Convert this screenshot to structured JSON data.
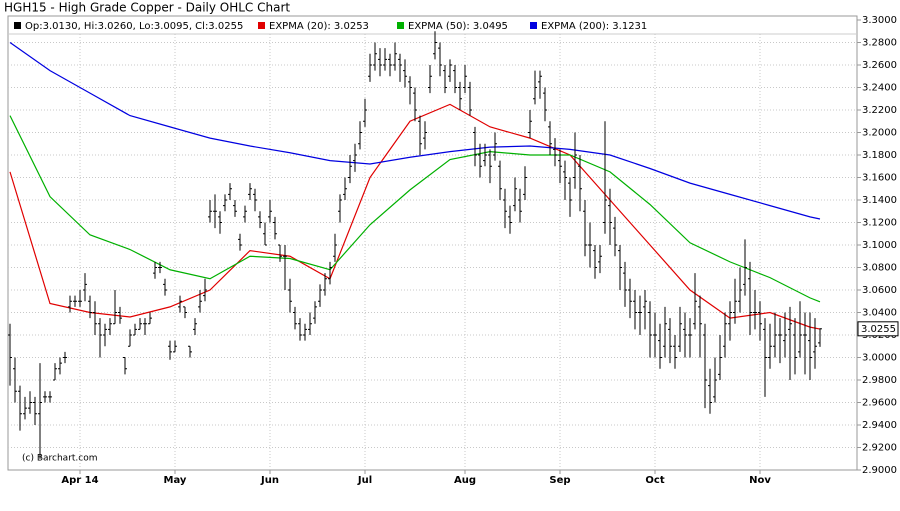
{
  "chart_data": {
    "type": "ohlc",
    "title": "HGH15 - High Grade Copper - Daily OHLC Chart",
    "ohlc_label": "Op:3.0130, Hi:3.0260, Lo:3.0095, Cl:3.0255",
    "last_price_label": "3.0255",
    "watermark": "(c) Barchart.com",
    "bar_color": "#000000",
    "ylim": [
      2.9,
      3.3
    ],
    "yticks": [
      {
        "value": 2.9,
        "label": "2.9000"
      },
      {
        "value": 2.92,
        "label": "2.9200"
      },
      {
        "value": 2.94,
        "label": "2.9400"
      },
      {
        "value": 2.96,
        "label": "2.9600"
      },
      {
        "value": 2.98,
        "label": "2.9800"
      },
      {
        "value": 3.0,
        "label": "3.0000"
      },
      {
        "value": 3.02,
        "label": "3.0200"
      },
      {
        "value": 3.04,
        "label": "3.0400"
      },
      {
        "value": 3.06,
        "label": "3.0600"
      },
      {
        "value": 3.08,
        "label": "3.0800"
      },
      {
        "value": 3.1,
        "label": "3.1000"
      },
      {
        "value": 3.12,
        "label": "3.1200"
      },
      {
        "value": 3.14,
        "label": "3.1400"
      },
      {
        "value": 3.16,
        "label": "3.1600"
      },
      {
        "value": 3.18,
        "label": "3.1800"
      },
      {
        "value": 3.2,
        "label": "3.2000"
      },
      {
        "value": 3.22,
        "label": "3.2200"
      },
      {
        "value": 3.24,
        "label": "3.2400"
      },
      {
        "value": 3.26,
        "label": "3.2600"
      },
      {
        "value": 3.28,
        "label": "3.2800"
      },
      {
        "value": 3.3,
        "label": "3.3000"
      }
    ],
    "xlim": [
      0,
      162
    ],
    "xticks": [
      {
        "value": 14,
        "label": "Apr 14"
      },
      {
        "value": 33,
        "label": "May"
      },
      {
        "value": 52,
        "label": "Jun"
      },
      {
        "value": 71,
        "label": "Jul"
      },
      {
        "value": 91,
        "label": "Aug"
      },
      {
        "value": 110,
        "label": "Sep"
      },
      {
        "value": 129,
        "label": "Oct"
      },
      {
        "value": 150,
        "label": "Nov"
      }
    ],
    "grid": true,
    "bars": [
      [
        3.02,
        3.03,
        2.975,
        3.0
      ],
      [
        2.99,
        3.0,
        2.96,
        2.97
      ],
      [
        2.97,
        2.975,
        2.935,
        2.95
      ],
      [
        2.95,
        2.965,
        2.945,
        2.955
      ],
      [
        2.955,
        2.97,
        2.95,
        2.96
      ],
      [
        2.96,
        2.965,
        2.94,
        2.95
      ],
      [
        2.95,
        2.995,
        2.91,
        2.96
      ],
      [
        2.965,
        2.97,
        2.96,
        2.965
      ],
      [
        2.965,
        2.97,
        2.96,
        2.965
      ],
      [
        2.98,
        2.995,
        2.98,
        2.99
      ],
      [
        2.99,
        3.0,
        2.985,
        2.995
      ],
      [
        3.0,
        3.005,
        2.995,
        3.0
      ],
      [
        3.045,
        3.055,
        3.04,
        3.05
      ],
      [
        3.05,
        3.055,
        3.045,
        3.05
      ],
      [
        3.05,
        3.06,
        3.045,
        3.05
      ],
      [
        3.06,
        3.075,
        3.05,
        3.065
      ],
      [
        3.05,
        3.055,
        3.035,
        3.04
      ],
      [
        3.04,
        3.05,
        3.02,
        3.03
      ],
      [
        3.03,
        3.035,
        3.0,
        3.02
      ],
      [
        3.02,
        3.03,
        3.01,
        3.025
      ],
      [
        3.025,
        3.035,
        3.02,
        3.03
      ],
      [
        3.03,
        3.06,
        3.03,
        3.04
      ],
      [
        3.04,
        3.045,
        3.03,
        3.035
      ],
      [
        3.0,
        3.0,
        2.985,
        2.99
      ],
      [
        3.01,
        3.025,
        3.01,
        3.02
      ],
      [
        3.02,
        3.03,
        3.02,
        3.025
      ],
      [
        3.025,
        3.035,
        3.025,
        3.03
      ],
      [
        3.03,
        3.035,
        3.02,
        3.03
      ],
      [
        3.03,
        3.04,
        3.03,
        3.035
      ],
      [
        3.075,
        3.085,
        3.07,
        3.08
      ],
      [
        3.08,
        3.085,
        3.075,
        3.08
      ],
      [
        3.065,
        3.07,
        3.055,
        3.06
      ],
      [
        3.01,
        3.015,
        2.998,
        3.005
      ],
      [
        3.005,
        3.015,
        3.005,
        3.01
      ],
      [
        3.045,
        3.055,
        3.04,
        3.05
      ],
      [
        3.045,
        3.045,
        3.035,
        3.04
      ],
      [
        3.01,
        3.01,
        3.0,
        3.005
      ],
      [
        3.025,
        3.035,
        3.02,
        3.03
      ],
      [
        3.045,
        3.06,
        3.04,
        3.05
      ],
      [
        3.055,
        3.07,
        3.05,
        3.06
      ],
      [
        3.125,
        3.14,
        3.12,
        3.13
      ],
      [
        3.13,
        3.145,
        3.115,
        3.13
      ],
      [
        3.125,
        3.13,
        3.11,
        3.12
      ],
      [
        3.135,
        3.145,
        3.13,
        3.14
      ],
      [
        3.145,
        3.155,
        3.14,
        3.15
      ],
      [
        3.135,
        3.14,
        3.125,
        3.13
      ],
      [
        3.105,
        3.11,
        3.095,
        3.1
      ],
      [
        3.125,
        3.135,
        3.12,
        3.13
      ],
      [
        3.145,
        3.155,
        3.14,
        3.15
      ],
      [
        3.145,
        3.15,
        3.13,
        3.14
      ],
      [
        3.125,
        3.13,
        3.115,
        3.12
      ],
      [
        3.11,
        3.12,
        3.1,
        3.1
      ],
      [
        3.125,
        3.14,
        3.12,
        3.13
      ],
      [
        3.12,
        3.125,
        3.105,
        3.11
      ],
      [
        3.1,
        3.1,
        3.085,
        3.09
      ],
      [
        3.09,
        3.1,
        3.06,
        3.09
      ],
      [
        3.06,
        3.07,
        3.04,
        3.05
      ],
      [
        3.04,
        3.045,
        3.025,
        3.03
      ],
      [
        3.03,
        3.035,
        3.015,
        3.02
      ],
      [
        3.02,
        3.03,
        3.015,
        3.025
      ],
      [
        3.025,
        3.04,
        3.02,
        3.03
      ],
      [
        3.035,
        3.05,
        3.03,
        3.045
      ],
      [
        3.05,
        3.065,
        3.045,
        3.06
      ],
      [
        3.06,
        3.075,
        3.055,
        3.07
      ],
      [
        3.07,
        3.085,
        3.065,
        3.08
      ],
      [
        3.09,
        3.11,
        3.085,
        3.1
      ],
      [
        3.13,
        3.145,
        3.12,
        3.14
      ],
      [
        3.145,
        3.16,
        3.14,
        3.15
      ],
      [
        3.16,
        3.18,
        3.155,
        3.17
      ],
      [
        3.175,
        3.19,
        3.165,
        3.18
      ],
      [
        3.19,
        3.21,
        3.185,
        3.2
      ],
      [
        3.21,
        3.23,
        3.205,
        3.22
      ],
      [
        3.25,
        3.27,
        3.245,
        3.26
      ],
      [
        3.26,
        3.28,
        3.255,
        3.27
      ],
      [
        3.265,
        3.275,
        3.25,
        3.26
      ],
      [
        3.26,
        3.275,
        3.255,
        3.265
      ],
      [
        3.265,
        3.27,
        3.25,
        3.26
      ],
      [
        3.26,
        3.28,
        3.255,
        3.27
      ],
      [
        3.265,
        3.27,
        3.245,
        3.26
      ],
      [
        3.255,
        3.265,
        3.24,
        3.25
      ],
      [
        3.245,
        3.25,
        3.225,
        3.24
      ],
      [
        3.235,
        3.24,
        3.21,
        3.22
      ],
      [
        3.21,
        3.215,
        3.18,
        3.19
      ],
      [
        3.195,
        3.21,
        3.185,
        3.2
      ],
      [
        3.24,
        3.26,
        3.235,
        3.25
      ],
      [
        3.27,
        3.29,
        3.265,
        3.28
      ],
      [
        3.275,
        3.28,
        3.25,
        3.26
      ],
      [
        3.255,
        3.26,
        3.235,
        3.24
      ],
      [
        3.25,
        3.265,
        3.245,
        3.26
      ],
      [
        3.255,
        3.26,
        3.235,
        3.24
      ],
      [
        3.24,
        3.245,
        3.22,
        3.23
      ],
      [
        3.24,
        3.26,
        3.235,
        3.25
      ],
      [
        3.24,
        3.245,
        3.215,
        3.22
      ],
      [
        3.2,
        3.205,
        3.17,
        3.18
      ],
      [
        3.18,
        3.19,
        3.16,
        3.17
      ],
      [
        3.175,
        3.19,
        3.17,
        3.18
      ],
      [
        3.18,
        3.185,
        3.155,
        3.17
      ],
      [
        3.18,
        3.2,
        3.175,
        3.19
      ],
      [
        3.17,
        3.175,
        3.14,
        3.15
      ],
      [
        3.14,
        3.15,
        3.115,
        3.13
      ],
      [
        3.125,
        3.135,
        3.11,
        3.12
      ],
      [
        3.135,
        3.16,
        3.13,
        3.15
      ],
      [
        3.14,
        3.15,
        3.12,
        3.13
      ],
      [
        3.145,
        3.17,
        3.14,
        3.16
      ],
      [
        3.2,
        3.22,
        3.195,
        3.21
      ],
      [
        3.23,
        3.255,
        3.225,
        3.24
      ],
      [
        3.245,
        3.255,
        3.23,
        3.25
      ],
      [
        3.235,
        3.24,
        3.21,
        3.22
      ],
      [
        3.205,
        3.21,
        3.18,
        3.19
      ],
      [
        3.185,
        3.195,
        3.17,
        3.18
      ],
      [
        3.175,
        3.185,
        3.155,
        3.17
      ],
      [
        3.165,
        3.175,
        3.14,
        3.16
      ],
      [
        3.155,
        3.16,
        3.125,
        3.14
      ],
      [
        3.16,
        3.2,
        3.15,
        3.18
      ],
      [
        3.17,
        3.18,
        3.13,
        3.15
      ],
      [
        3.13,
        3.14,
        3.09,
        3.1
      ],
      [
        3.1,
        3.12,
        3.08,
        3.1
      ],
      [
        3.095,
        3.1,
        3.07,
        3.08
      ],
      [
        3.085,
        3.1,
        3.075,
        3.09
      ],
      [
        3.12,
        3.21,
        3.11,
        3.14
      ],
      [
        3.135,
        3.15,
        3.1,
        3.12
      ],
      [
        3.115,
        3.125,
        3.09,
        3.1
      ],
      [
        3.095,
        3.1,
        3.06,
        3.08
      ],
      [
        3.075,
        3.085,
        3.045,
        3.06
      ],
      [
        3.06,
        3.07,
        3.035,
        3.05
      ],
      [
        3.05,
        3.06,
        3.025,
        3.04
      ],
      [
        3.04,
        3.055,
        3.02,
        3.04
      ],
      [
        3.045,
        3.06,
        3.025,
        3.05
      ],
      [
        3.04,
        3.05,
        3.0,
        3.02
      ],
      [
        3.02,
        3.04,
        3.0,
        3.02
      ],
      [
        3.015,
        3.03,
        2.99,
        3.0
      ],
      [
        3.01,
        3.045,
        3.0,
        3.03
      ],
      [
        3.025,
        3.035,
        2.995,
        3.01
      ],
      [
        3.01,
        3.02,
        2.99,
        3.0
      ],
      [
        3.01,
        3.045,
        3.005,
        3.03
      ],
      [
        3.025,
        3.04,
        3.0,
        3.02
      ],
      [
        3.02,
        3.035,
        3.0,
        3.02
      ],
      [
        3.03,
        3.075,
        3.025,
        3.05
      ],
      [
        3.045,
        3.055,
        3.0,
        3.03
      ],
      [
        3.02,
        3.03,
        2.955,
        2.98
      ],
      [
        2.975,
        2.99,
        2.95,
        2.96
      ],
      [
        2.965,
        3.0,
        2.96,
        2.98
      ],
      [
        2.985,
        3.02,
        2.98,
        3.0
      ],
      [
        3.01,
        3.04,
        3.0,
        3.03
      ],
      [
        3.03,
        3.05,
        3.015,
        3.04
      ],
      [
        3.04,
        3.07,
        3.03,
        3.05
      ],
      [
        3.05,
        3.08,
        3.04,
        3.06
      ],
      [
        3.065,
        3.105,
        3.055,
        3.08
      ],
      [
        3.07,
        3.085,
        3.02,
        3.04
      ],
      [
        3.04,
        3.06,
        3.025,
        3.04
      ],
      [
        3.04,
        3.05,
        3.015,
        3.03
      ],
      [
        3.025,
        3.035,
        2.965,
        3.0
      ],
      [
        3.0,
        3.03,
        2.99,
        3.01
      ],
      [
        3.01,
        3.04,
        3.0,
        3.02
      ],
      [
        3.02,
        3.035,
        2.995,
        3.02
      ],
      [
        3.015,
        3.04,
        3.0,
        3.02
      ],
      [
        3.025,
        3.045,
        2.98,
        3.03
      ],
      [
        3.02,
        3.035,
        2.985,
        3.0
      ],
      [
        3.005,
        3.05,
        3.0,
        3.02
      ],
      [
        3.02,
        3.04,
        2.985,
        3.02
      ],
      [
        3.015,
        3.04,
        2.98,
        3.0
      ],
      [
        3.005,
        3.035,
        2.99,
        3.01
      ],
      [
        3.013,
        3.026,
        3.0095,
        3.0255
      ]
    ],
    "series": [
      {
        "name": "EXPMA (20): 3.0253",
        "color": "#e00000",
        "x": [
          0,
          8,
          16,
          24,
          32,
          40,
          48,
          56,
          64,
          72,
          80,
          88,
          96,
          104,
          112,
          120,
          128,
          136,
          144,
          152,
          160,
          162
        ],
        "values": [
          3.165,
          3.048,
          3.04,
          3.036,
          3.045,
          3.06,
          3.095,
          3.09,
          3.07,
          3.16,
          3.21,
          3.225,
          3.205,
          3.195,
          3.18,
          3.14,
          3.1,
          3.06,
          3.035,
          3.04,
          3.027,
          3.0253
        ]
      },
      {
        "name": "EXPMA (50): 3.0495",
        "color": "#00b000",
        "x": [
          0,
          8,
          16,
          24,
          32,
          40,
          48,
          56,
          64,
          72,
          80,
          88,
          96,
          104,
          112,
          120,
          128,
          136,
          144,
          152,
          160,
          162
        ],
        "values": [
          3.215,
          3.143,
          3.109,
          3.096,
          3.078,
          3.07,
          3.09,
          3.088,
          3.078,
          3.118,
          3.149,
          3.176,
          3.183,
          3.18,
          3.18,
          3.165,
          3.136,
          3.102,
          3.085,
          3.071,
          3.053,
          3.0495
        ]
      },
      {
        "name": "EXPMA (200): 3.1231",
        "color": "#0000e0",
        "x": [
          0,
          8,
          16,
          24,
          32,
          40,
          48,
          56,
          64,
          72,
          80,
          88,
          96,
          104,
          112,
          120,
          128,
          136,
          144,
          152,
          160,
          162
        ],
        "values": [
          3.28,
          3.255,
          3.235,
          3.215,
          3.205,
          3.195,
          3.188,
          3.182,
          3.175,
          3.172,
          3.178,
          3.183,
          3.187,
          3.188,
          3.185,
          3.18,
          3.168,
          3.155,
          3.145,
          3.135,
          3.125,
          3.1231
        ]
      }
    ]
  }
}
